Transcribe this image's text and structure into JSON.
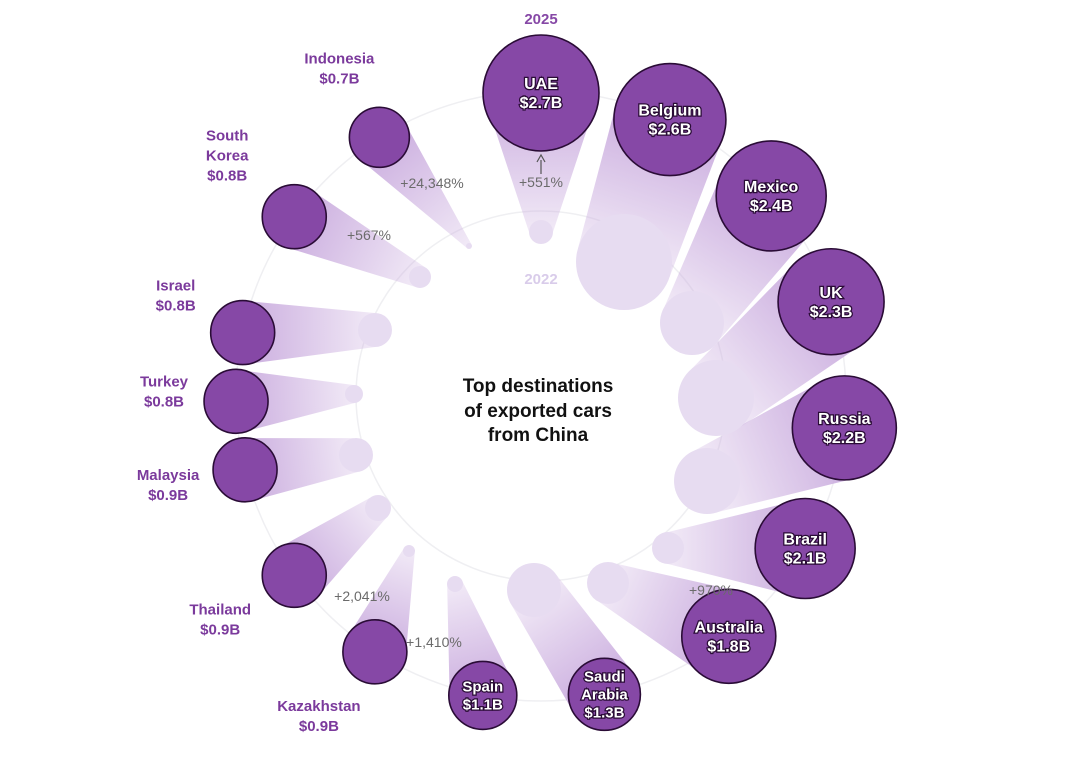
{
  "chart_data": {
    "type": "radial-bubble",
    "title_lines": [
      "Top destinations",
      "of exported cars",
      "from China"
    ],
    "year_labels": {
      "end": "2025",
      "start": "2022"
    },
    "units": "USD billions",
    "series_names": [
      "2022",
      "2025"
    ],
    "colors": {
      "end_fill": "#8648a6",
      "end_stroke": "#2a0c36",
      "start_fill": "#e7dcf1",
      "cone": "#c8a9dd",
      "label": "#7b3a9c",
      "pct": "#6b6b6b"
    },
    "destinations": [
      {
        "name": "UAE",
        "value_2025": 2.7,
        "value_label": "$2.7B",
        "label_inside": true,
        "name_lines": [
          "UAE"
        ],
        "change": "+551%"
      },
      {
        "name": "Belgium",
        "value_2025": 2.6,
        "value_label": "$2.6B",
        "label_inside": true,
        "name_lines": [
          "Belgium"
        ],
        "change": ""
      },
      {
        "name": "Mexico",
        "value_2025": 2.4,
        "value_label": "$2.4B",
        "label_inside": true,
        "name_lines": [
          "Mexico"
        ],
        "change": ""
      },
      {
        "name": "UK",
        "value_2025": 2.3,
        "value_label": "$2.3B",
        "label_inside": true,
        "name_lines": [
          "UK"
        ],
        "change": ""
      },
      {
        "name": "Russia",
        "value_2025": 2.2,
        "value_label": "$2.2B",
        "label_inside": true,
        "name_lines": [
          "Russia"
        ],
        "change": ""
      },
      {
        "name": "Brazil",
        "value_2025": 2.1,
        "value_label": "$2.1B",
        "label_inside": true,
        "name_lines": [
          "Brazil"
        ],
        "change": "+970%"
      },
      {
        "name": "Australia",
        "value_2025": 1.8,
        "value_label": "$1.8B",
        "label_inside": true,
        "name_lines": [
          "Australia"
        ],
        "change": ""
      },
      {
        "name": "Saudi Arabia",
        "value_2025": 1.3,
        "value_label": "$1.3B",
        "label_inside": true,
        "name_lines": [
          "Saudi",
          "Arabia"
        ],
        "change": ""
      },
      {
        "name": "Spain",
        "value_2025": 1.1,
        "value_label": "$1.1B",
        "label_inside": true,
        "name_lines": [
          "Spain"
        ],
        "change": "+1,410%"
      },
      {
        "name": "Kazakhstan",
        "value_2025": 0.9,
        "value_label": "$0.9B",
        "label_inside": false,
        "name_lines": [
          "Kazakhstan"
        ],
        "change": "+2,041%"
      },
      {
        "name": "Thailand",
        "value_2025": 0.9,
        "value_label": "$0.9B",
        "label_inside": false,
        "name_lines": [
          "Thailand"
        ],
        "change": ""
      },
      {
        "name": "Malaysia",
        "value_2025": 0.9,
        "value_label": "$0.9B",
        "label_inside": false,
        "name_lines": [
          "Malaysia"
        ],
        "change": ""
      },
      {
        "name": "Turkey",
        "value_2025": 0.8,
        "value_label": "$0.8B",
        "label_inside": false,
        "name_lines": [
          "Turkey"
        ],
        "change": ""
      },
      {
        "name": "Israel",
        "value_2025": 0.8,
        "value_label": "$0.8B",
        "label_inside": false,
        "name_lines": [
          "Israel"
        ],
        "change": ""
      },
      {
        "name": "South Korea",
        "value_2025": 0.8,
        "value_label": "$0.8B",
        "label_inside": false,
        "name_lines": [
          "South",
          "Korea"
        ],
        "change": "+567%"
      },
      {
        "name": "Indonesia",
        "value_2025": 0.7,
        "value_label": "$0.7B",
        "label_inside": false,
        "name_lines": [
          "Indonesia"
        ],
        "change": "+24,348%"
      }
    ]
  }
}
